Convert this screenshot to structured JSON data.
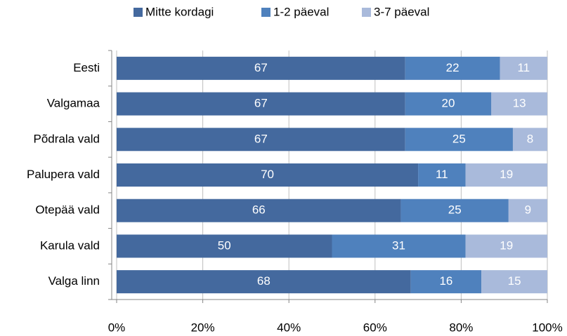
{
  "chart_data": {
    "type": "stacked-bar-horizontal",
    "categories": [
      "Eesti",
      "Valgamaa",
      "Põdrala vald",
      "Palupera vald",
      "Otepää vald",
      "Karula vald",
      "Valga linn"
    ],
    "series": [
      {
        "name": "Mitte kordagi",
        "color": "#44699e",
        "values": [
          67,
          67,
          67,
          70,
          66,
          50,
          68.3
        ],
        "value_labels": [
          "67",
          "67",
          "67",
          "70",
          "66",
          "50",
          "68"
        ]
      },
      {
        "name": "1-2 päeval",
        "color": "#4f81bd",
        "values": [
          22,
          20,
          25,
          11,
          25,
          31,
          16.4
        ],
        "value_labels": [
          "22",
          "20",
          "25",
          "11",
          "25",
          "31",
          "16"
        ]
      },
      {
        "name": "3-7 päeval",
        "color": "#a9badb",
        "values": [
          11,
          13,
          8,
          19,
          9,
          19,
          15.3
        ],
        "value_labels": [
          "11",
          "13",
          "8",
          "19",
          "9",
          "19",
          "15"
        ]
      }
    ],
    "xlim": [
      0,
      100
    ],
    "xticks": [
      {
        "value": 0,
        "label": "0%"
      },
      {
        "value": 20,
        "label": "20%"
      },
      {
        "value": 40,
        "label": "40%"
      },
      {
        "value": 60,
        "label": "60%"
      },
      {
        "value": 80,
        "label": "80%"
      },
      {
        "value": 100,
        "label": "100%"
      }
    ],
    "grid": true,
    "legend": "top"
  }
}
